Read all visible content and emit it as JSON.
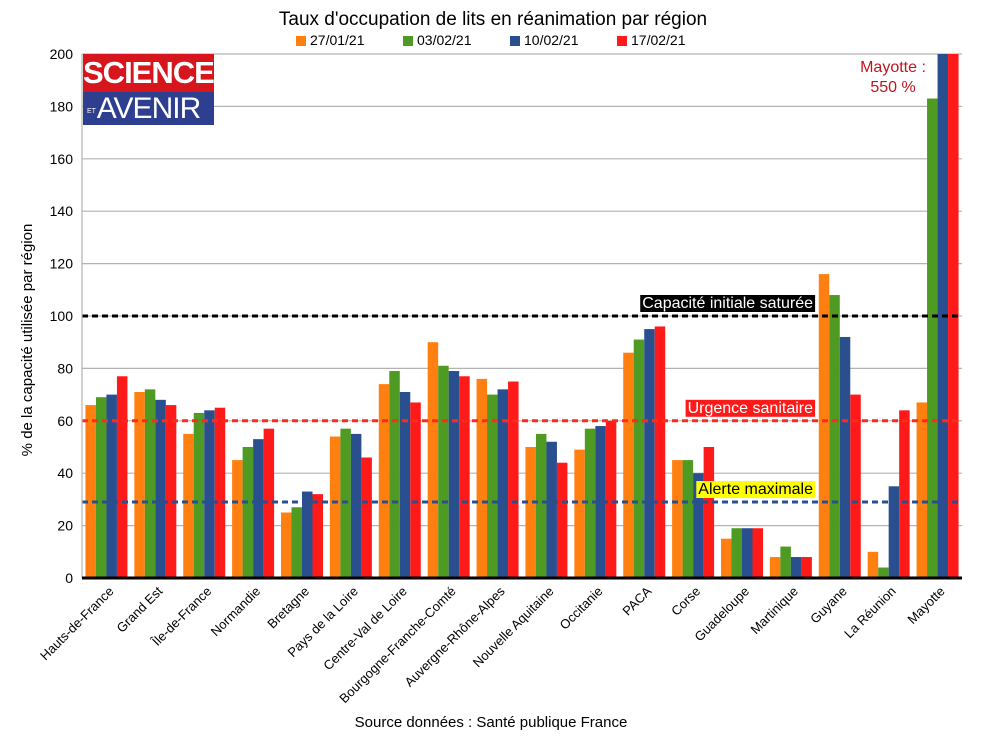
{
  "chart_data": {
    "type": "bar",
    "title": "Taux d'occupation de lits en réanimation par région",
    "xlabel": "",
    "ylabel": "% de la capacité utilisée par région",
    "source": "Source données : Santé publique France",
    "ylim": [
      0,
      200
    ],
    "yticks": [
      0,
      20,
      40,
      60,
      80,
      100,
      120,
      140,
      160,
      180,
      200
    ],
    "grid": true,
    "legend_position": "top",
    "categories": [
      "Hauts-de-France",
      "Grand Est",
      "Île-de-France",
      "Normandie",
      "Bretagne",
      "Pays de la Loire",
      "Centre-Val de Loire",
      "Bourgogne-Franche-Comté",
      "Auvergne-Rhône-Alpes",
      "Nouvelle Aquitaine",
      "Occitanie",
      "PACA",
      "Corse",
      "Guadeloupe",
      "Martinique",
      "Guyane",
      "La Réunion",
      "Mayotte"
    ],
    "series": [
      {
        "name": "27/01/21",
        "color": "#ff7f10",
        "values": [
          66,
          71,
          55,
          45,
          25,
          54,
          74,
          90,
          76,
          50,
          49,
          86,
          45,
          15,
          8,
          116,
          10,
          67
        ]
      },
      {
        "name": "03/02/21",
        "color": "#4e9a22",
        "values": [
          69,
          72,
          63,
          50,
          27,
          57,
          79,
          81,
          70,
          55,
          57,
          91,
          45,
          19,
          12,
          108,
          4,
          183
        ]
      },
      {
        "name": "10/02/21",
        "color": "#2a4f8f",
        "values": [
          70,
          68,
          64,
          53,
          33,
          55,
          71,
          79,
          72,
          52,
          58,
          95,
          40,
          19,
          8,
          92,
          35,
          200
        ]
      },
      {
        "name": "17/02/21",
        "color": "#ff1a1a",
        "values": [
          77,
          66,
          65,
          57,
          32,
          46,
          67,
          77,
          75,
          44,
          60,
          96,
          50,
          19,
          8,
          70,
          64,
          200
        ]
      }
    ],
    "reference_lines": [
      {
        "label": "Capacité initiale saturée",
        "value": 100,
        "color": "#000000",
        "label_bg": "#000000",
        "label_color": "#ffffff"
      },
      {
        "label": "Urgence sanitaire",
        "value": 60,
        "color": "#ff2a1a",
        "label_bg": "#ff1a1a",
        "label_color": "#ffffff"
      },
      {
        "label": "Alerte maximale",
        "value": 29,
        "color": "#2a4f8f",
        "label_bg": "#ffff00",
        "label_color": "#000000"
      }
    ],
    "annotation": {
      "line1": "Mayotte :",
      "line2": "550 %",
      "color": "#c0151d"
    }
  },
  "logo": {
    "top": "SCIENCES",
    "et": "ET",
    "bottom": "AVENIR"
  }
}
